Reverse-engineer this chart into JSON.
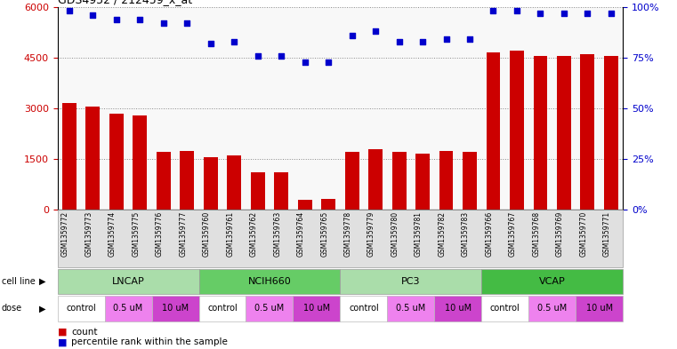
{
  "samples": [
    "GSM1359772",
    "GSM1359773",
    "GSM1359774",
    "GSM1359775",
    "GSM1359776",
    "GSM1359777",
    "GSM1359760",
    "GSM1359761",
    "GSM1359762",
    "GSM1359763",
    "GSM1359764",
    "GSM1359765",
    "GSM1359778",
    "GSM1359779",
    "GSM1359780",
    "GSM1359781",
    "GSM1359782",
    "GSM1359783",
    "GSM1359766",
    "GSM1359767",
    "GSM1359768",
    "GSM1359769",
    "GSM1359770",
    "GSM1359771"
  ],
  "counts": [
    3150,
    3050,
    2850,
    2800,
    1700,
    1750,
    1550,
    1600,
    1100,
    1100,
    300,
    330,
    1700,
    1800,
    1700,
    1650,
    1750,
    1700,
    4650,
    4700,
    4550,
    4550,
    4600,
    4550
  ],
  "percentiles": [
    98,
    96,
    94,
    94,
    92,
    92,
    82,
    83,
    76,
    76,
    73,
    73,
    86,
    88,
    83,
    83,
    84,
    84,
    98,
    98,
    97,
    97,
    97,
    97
  ],
  "cell_lines": [
    {
      "name": "LNCAP",
      "start": 0,
      "end": 6,
      "color": "#AADDAA"
    },
    {
      "name": "NCIH660",
      "start": 6,
      "end": 12,
      "color": "#66CC66"
    },
    {
      "name": "PC3",
      "start": 12,
      "end": 18,
      "color": "#AADDAA"
    },
    {
      "name": "VCAP",
      "start": 18,
      "end": 24,
      "color": "#44BB44"
    }
  ],
  "doses": [
    {
      "label": "control",
      "start": 0,
      "end": 2,
      "color": "#FFFFFF"
    },
    {
      "label": "0.5 uM",
      "start": 2,
      "end": 4,
      "color": "#EE82EE"
    },
    {
      "label": "10 uM",
      "start": 4,
      "end": 6,
      "color": "#CC44CC"
    },
    {
      "label": "control",
      "start": 6,
      "end": 8,
      "color": "#FFFFFF"
    },
    {
      "label": "0.5 uM",
      "start": 8,
      "end": 10,
      "color": "#EE82EE"
    },
    {
      "label": "10 uM",
      "start": 10,
      "end": 12,
      "color": "#CC44CC"
    },
    {
      "label": "control",
      "start": 12,
      "end": 14,
      "color": "#FFFFFF"
    },
    {
      "label": "0.5 uM",
      "start": 14,
      "end": 16,
      "color": "#EE82EE"
    },
    {
      "label": "10 uM",
      "start": 16,
      "end": 18,
      "color": "#CC44CC"
    },
    {
      "label": "control",
      "start": 18,
      "end": 20,
      "color": "#FFFFFF"
    },
    {
      "label": "0.5 uM",
      "start": 20,
      "end": 22,
      "color": "#EE82EE"
    },
    {
      "label": "10 uM",
      "start": 22,
      "end": 24,
      "color": "#CC44CC"
    }
  ],
  "bar_color": "#CC0000",
  "dot_color": "#0000CC",
  "ylim_left": [
    0,
    6000
  ],
  "ylim_right": [
    0,
    100
  ],
  "yticks_left": [
    0,
    1500,
    3000,
    4500,
    6000
  ],
  "yticks_right": [
    0,
    25,
    50,
    75,
    100
  ],
  "ytick_labels_left": [
    "0",
    "1500",
    "3000",
    "4500",
    "6000"
  ],
  "ytick_labels_right": [
    "0%",
    "25%",
    "50%",
    "75%",
    "100%"
  ],
  "grid_color": "#888888",
  "bg_color": "#F8F8F8"
}
